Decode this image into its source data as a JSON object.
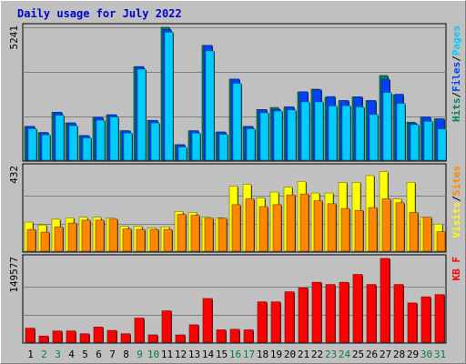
{
  "title": "Daily usage for July 2022",
  "colors": {
    "background": "#c0c0c0",
    "title": "#0000cc",
    "hits": "#00805c",
    "files": "#0040ff",
    "pages": "#00ccff",
    "visits": "#ffff00",
    "sites": "#ff8800",
    "kbytes": "#ff0000",
    "weekday_label": "#000000",
    "weekend_label": "#008040"
  },
  "chart_data": [
    {
      "type": "bar",
      "panel": "hits-files-pages",
      "categories": [
        "1",
        "2",
        "3",
        "4",
        "5",
        "6",
        "7",
        "8",
        "9",
        "10",
        "11",
        "12",
        "13",
        "14",
        "15",
        "16",
        "17",
        "18",
        "19",
        "20",
        "21",
        "22",
        "23",
        "24",
        "25",
        "26",
        "27",
        "28",
        "29",
        "30",
        "31"
      ],
      "weekend": [
        2,
        3,
        9,
        10,
        16,
        17,
        23,
        24,
        30,
        31
      ],
      "ymax_label": "5241",
      "ymax": 5241,
      "legend": [
        {
          "label": "Hits",
          "color": "hits"
        },
        {
          "label": "Files",
          "color": "files"
        },
        {
          "label": "Pages",
          "color": "pages"
        }
      ],
      "separator": "/",
      "series": [
        {
          "name": "Hits",
          "values": [
            1335,
            1090,
            1890,
            1470,
            970,
            1690,
            1790,
            1160,
            3690,
            1570,
            5241,
            610,
            1160,
            4530,
            1110,
            3200,
            1330,
            2000,
            2080,
            2100,
            2690,
            2800,
            2480,
            2350,
            2500,
            2350,
            3340,
            2580,
            1500,
            1700,
            1630
          ]
        },
        {
          "name": "Files",
          "values": [
            1335,
            1090,
            1890,
            1470,
            970,
            1690,
            1790,
            1160,
            3690,
            1570,
            5150,
            610,
            1160,
            4530,
            1110,
            3200,
            1330,
            2000,
            2000,
            2100,
            2700,
            2780,
            2510,
            2350,
            2500,
            2350,
            3190,
            2600,
            1450,
            1700,
            1630
          ]
        },
        {
          "name": "Pages",
          "values": [
            1240,
            1000,
            1770,
            1360,
            880,
            1580,
            1700,
            1070,
            3590,
            1470,
            5050,
            520,
            1070,
            4310,
            1020,
            3030,
            1240,
            1870,
            1940,
            1980,
            2300,
            2300,
            2140,
            2150,
            2100,
            1800,
            2670,
            2240,
            1400,
            1530,
            1230
          ]
        }
      ]
    },
    {
      "type": "bar",
      "panel": "visits-sites",
      "ymax_label": "432",
      "ymax": 432,
      "legend": [
        {
          "label": "Visits",
          "color": "visits"
        },
        {
          "label": "Sites",
          "color": "sites"
        }
      ],
      "separator": "/",
      "series": [
        {
          "name": "Visits",
          "values": [
            150,
            135,
            165,
            172,
            175,
            175,
            170,
            128,
            128,
            120,
            125,
            205,
            200,
            175,
            172,
            335,
            345,
            275,
            305,
            330,
            360,
            300,
            300,
            355,
            355,
            390,
            410,
            270,
            355,
            175,
            140
          ]
        },
        {
          "name": "Sites",
          "values": [
            112,
            98,
            125,
            145,
            160,
            160,
            165,
            115,
            112,
            112,
            112,
            190,
            185,
            170,
            170,
            240,
            270,
            230,
            240,
            290,
            295,
            260,
            245,
            220,
            210,
            225,
            270,
            250,
            200,
            175,
            100
          ]
        }
      ]
    },
    {
      "type": "bar",
      "panel": "kbytes",
      "ymax_label": "149577",
      "ymax": 149577,
      "legend": [
        {
          "label": "KB F",
          "color": "kbytes"
        }
      ],
      "series": [
        {
          "name": "KB F",
          "values": [
            25000,
            11000,
            20000,
            20000,
            15000,
            27000,
            21000,
            15000,
            43000,
            13000,
            56000,
            13000,
            31000,
            78000,
            22000,
            23000,
            22000,
            72000,
            72000,
            90000,
            97000,
            107000,
            103000,
            107000,
            121000,
            103000,
            149577,
            103000,
            70000,
            81000,
            85000
          ]
        }
      ]
    }
  ]
}
